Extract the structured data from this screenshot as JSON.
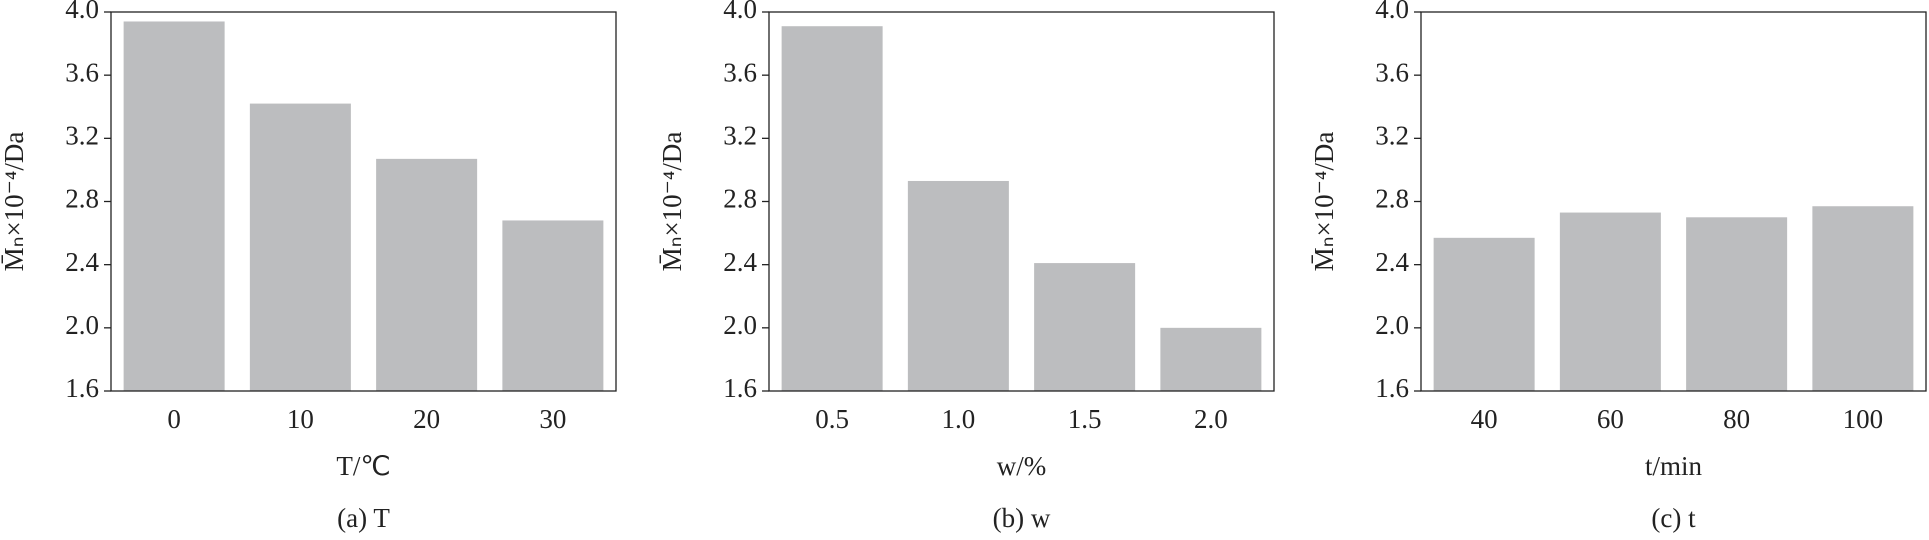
{
  "chart_data": [
    {
      "type": "bar",
      "y_label": "M̄ₙ×10⁻⁴/Da",
      "x_label": "T/℃",
      "caption": "(a) T",
      "categories": [
        "0",
        "10",
        "20",
        "30"
      ],
      "values": [
        3.94,
        3.42,
        3.07,
        2.68
      ],
      "color": "#bcbdbf",
      "ylim": [
        1.6,
        4.0
      ],
      "yticks": [
        1.6,
        {
          "value": 2,
          "label": "2.0"
        },
        2.4,
        2.8,
        3.2,
        3.6,
        {
          "value": 4,
          "label": "4.0"
        }
      ]
    },
    {
      "type": "bar",
      "y_label": "M̄ₙ×10⁻⁴/Da",
      "x_label": "w/%",
      "caption": "(b) w",
      "categories": [
        "0.5",
        "1.0",
        "1.5",
        "2.0"
      ],
      "values": [
        3.91,
        2.93,
        2.41,
        2.0
      ],
      "color": "#bcbdbf",
      "ylim": [
        1.6,
        4.0
      ],
      "yticks": [
        1.6,
        {
          "value": 2,
          "label": "2.0"
        },
        2.4,
        2.8,
        3.2,
        3.6,
        {
          "value": 4,
          "label": "4.0"
        }
      ]
    },
    {
      "type": "bar",
      "y_label": "M̄ₙ×10⁻⁴/Da",
      "x_label": "t/min",
      "caption": "(c) t",
      "categories": [
        "40",
        "60",
        "80",
        "100"
      ],
      "values": [
        2.57,
        2.73,
        2.7,
        2.77
      ],
      "color": "#bcbdbf",
      "ylim": [
        1.6,
        4.0
      ],
      "yticks": [
        1.6,
        {
          "value": 2,
          "label": "2.0"
        },
        2.4,
        2.8,
        3.2,
        3.6,
        {
          "value": 4,
          "label": "4.0"
        }
      ]
    }
  ]
}
